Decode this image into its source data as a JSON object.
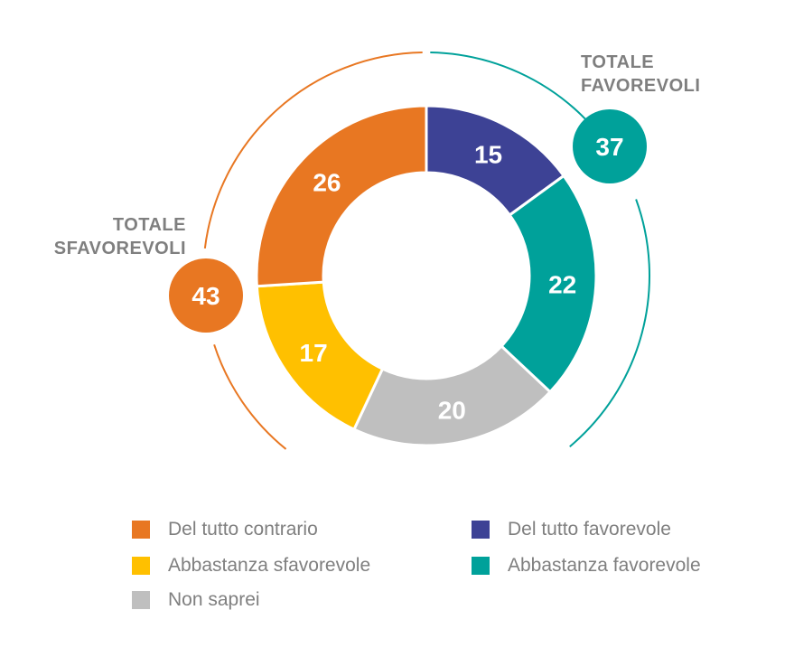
{
  "chart_data": {
    "type": "pie",
    "variant": "donut",
    "categories": [
      "Del tutto favorevole",
      "Abbastanza favorevole",
      "Non saprei",
      "Abbastanza sfavorevole",
      "Del tutto contrario"
    ],
    "values": [
      15,
      22,
      20,
      17,
      26
    ],
    "colors": [
      "#3d4295",
      "#00a19a",
      "#bfbfbf",
      "#ffc000",
      "#e87722"
    ],
    "totals": [
      {
        "title_line1": "TOTALE",
        "title_line2": "FAVOREVOLI",
        "value": "37",
        "color": "#00a19a"
      },
      {
        "title_line1": "TOTALE",
        "title_line2": "SFAVOREVOLI",
        "value": "43",
        "color": "#e87722"
      }
    ],
    "legend": [
      {
        "label": "Del tutto contrario",
        "color": "#e87722"
      },
      {
        "label": "Abbastanza sfavorevole",
        "color": "#ffc000"
      },
      {
        "label": "Non saprei",
        "color": "#bfbfbf"
      },
      {
        "label": "Del tutto favorevole",
        "color": "#3d4295"
      },
      {
        "label": "Abbastanza favorevole",
        "color": "#00a19a"
      }
    ]
  }
}
